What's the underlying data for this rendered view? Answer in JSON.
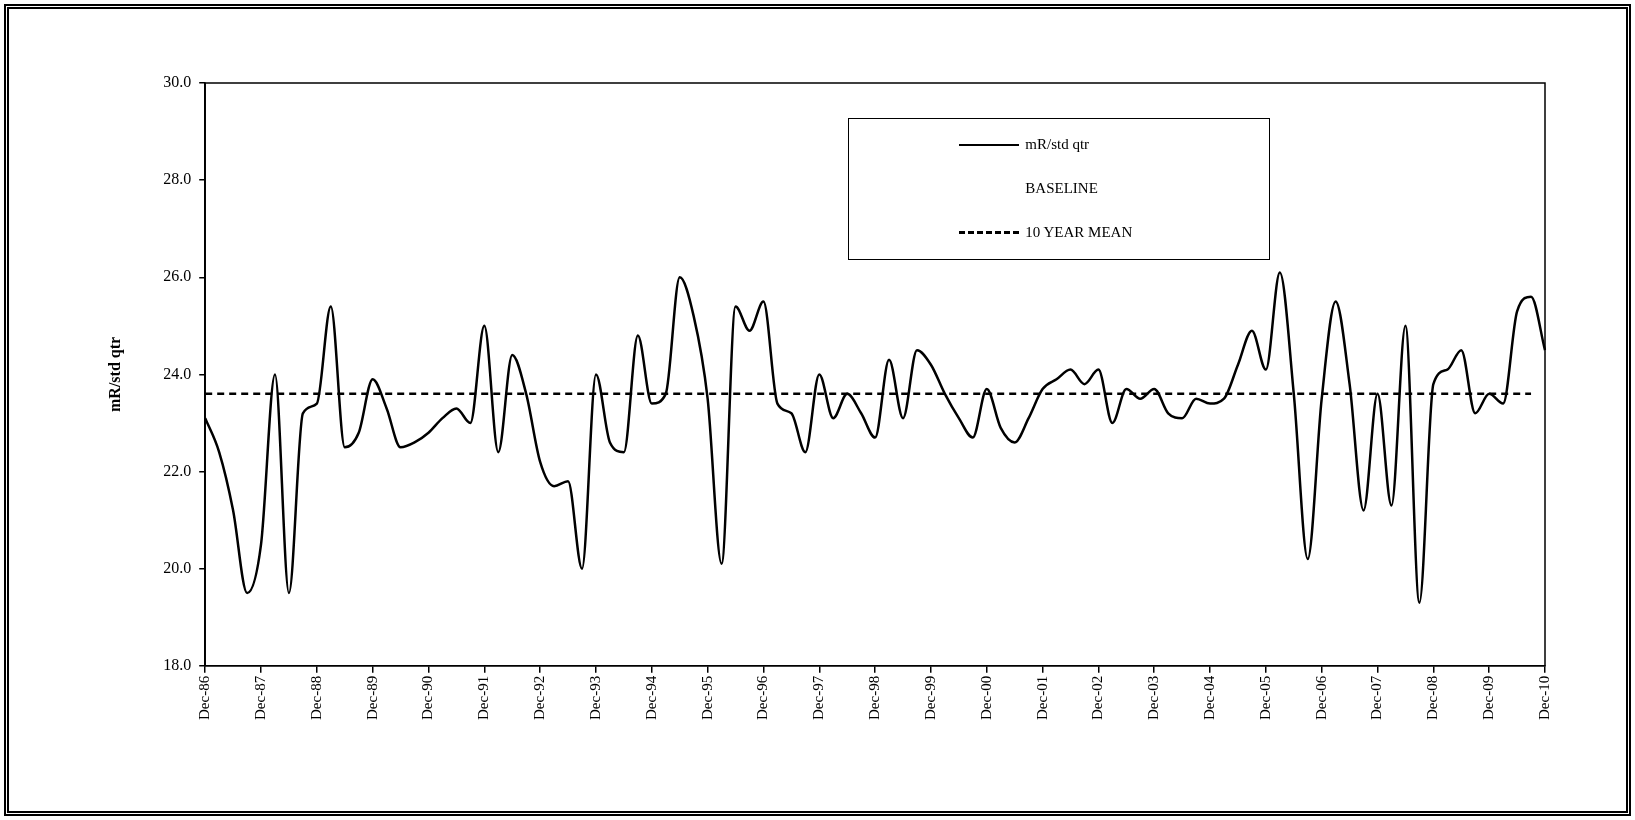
{
  "chart_data": {
    "type": "line",
    "ylabel": "mR/std qtr",
    "categories": [
      "Dec-86",
      null,
      null,
      null,
      "Dec-87",
      null,
      null,
      null,
      "Dec-88",
      null,
      null,
      null,
      "Dec-89",
      null,
      null,
      null,
      "Dec-90",
      null,
      null,
      null,
      "Dec-91",
      null,
      null,
      null,
      "Dec-92",
      null,
      null,
      null,
      "Dec-93",
      null,
      null,
      null,
      "Dec-94",
      null,
      null,
      null,
      "Dec-95",
      null,
      null,
      null,
      "Dec-96",
      null,
      null,
      null,
      "Dec-97",
      null,
      null,
      null,
      "Dec-98",
      null,
      null,
      null,
      "Dec-99",
      null,
      null,
      null,
      "Dec-00",
      null,
      null,
      null,
      "Dec-01",
      null,
      null,
      null,
      "Dec-02",
      null,
      null,
      null,
      "Dec-03",
      null,
      null,
      null,
      "Dec-04",
      null,
      null,
      null,
      "Dec-05",
      null,
      null,
      null,
      "Dec-06",
      null,
      null,
      null,
      "Dec-07",
      null,
      null,
      null,
      "Dec-08",
      null,
      null,
      null,
      "Dec-09",
      null,
      null,
      null,
      "Dec-10"
    ],
    "series": [
      {
        "name": "mR/std qtr",
        "color": "#000000",
        "line_style": "solid",
        "values": [
          23.1,
          22.4,
          21.2,
          19.5,
          20.5,
          24.0,
          19.5,
          23.2,
          23.4,
          25.4,
          22.5,
          22.8,
          23.9,
          23.3,
          22.5,
          22.6,
          22.8,
          23.1,
          23.3,
          23.0,
          25.0,
          22.4,
          24.4,
          23.6,
          22.2,
          21.7,
          21.8,
          20.0,
          24.0,
          22.6,
          22.4,
          24.8,
          23.4,
          23.6,
          26.0,
          25.2,
          23.5,
          20.1,
          25.4,
          24.9,
          25.5,
          23.4,
          23.2,
          22.4,
          24.0,
          23.1,
          23.6,
          23.2,
          22.7,
          24.3,
          23.1,
          24.5,
          24.2,
          23.6,
          23.1,
          22.7,
          23.7,
          22.9,
          22.6,
          23.1,
          23.7,
          23.9,
          24.1,
          23.8,
          24.1,
          23.0,
          23.7,
          23.5,
          23.7,
          23.2,
          23.1,
          23.5,
          23.4,
          23.5,
          24.2,
          24.9,
          24.1,
          26.1,
          23.6,
          20.2,
          23.5,
          25.5,
          23.8,
          21.2,
          23.6,
          21.3,
          25.0,
          19.3,
          23.8,
          24.1,
          24.5,
          23.2,
          23.6,
          23.4,
          25.3,
          25.6,
          24.5
        ]
      },
      {
        "name": "10 YEAR MEAN",
        "color": "#000000",
        "line_style": "dashed",
        "values": [
          23.6,
          23.6,
          23.6,
          23.6,
          23.6,
          23.6,
          23.6,
          23.6,
          23.6,
          23.6,
          23.6,
          23.6,
          23.6,
          23.6,
          23.6,
          23.6,
          23.6,
          23.6,
          23.6,
          23.6,
          23.6,
          23.6,
          23.6,
          23.6,
          23.6,
          23.6,
          23.6,
          23.6,
          23.6,
          23.6,
          23.6,
          23.6,
          23.6,
          23.6,
          23.6,
          23.6,
          23.6,
          23.6,
          23.6,
          23.6,
          23.6,
          23.6,
          23.6,
          23.6,
          23.6,
          23.6,
          23.6,
          23.6,
          23.6,
          23.6,
          23.6,
          23.6,
          23.6,
          23.6,
          23.6,
          23.6,
          23.6,
          23.6,
          23.6,
          23.6,
          23.6,
          23.6,
          23.6,
          23.6,
          23.6,
          23.6,
          23.6,
          23.6,
          23.6,
          23.6,
          23.6,
          23.6,
          23.6,
          23.6,
          23.6,
          23.6,
          23.6,
          23.6,
          23.6,
          23.6,
          23.6,
          23.6,
          23.6,
          23.6,
          23.6,
          23.6,
          23.6,
          23.6,
          23.6,
          23.6,
          23.6,
          23.6,
          23.6,
          23.6,
          23.6,
          23.6,
          null
        ]
      }
    ],
    "ylim": [
      18,
      30
    ],
    "yticks": [
      {
        "value": 18,
        "label": "18.0"
      },
      {
        "value": 20,
        "label": "20.0"
      },
      {
        "value": 22,
        "label": "22.0"
      },
      {
        "value": 24,
        "label": "24.0"
      },
      {
        "value": 26,
        "label": "26.0"
      },
      {
        "value": 28,
        "label": "28.0"
      },
      {
        "value": 30,
        "label": "30.0"
      }
    ],
    "annotations": [
      "BASELINE"
    ],
    "grid": false,
    "legend": "top right",
    "marker": "none"
  }
}
